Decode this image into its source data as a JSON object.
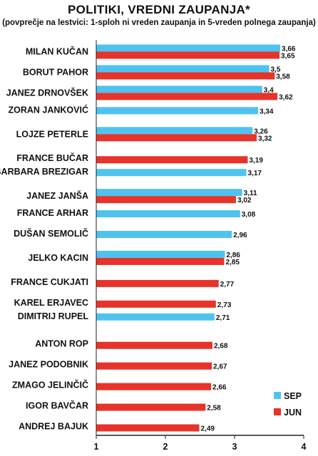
{
  "chart_data": {
    "type": "bar",
    "orientation": "horizontal",
    "title": "POLITIKI, VREDNI ZAUPANJA*",
    "subtitle": "(povprečje na lestvici: 1-sploh ni vreden zaupanja in 5-vreden polnega zaupanja)",
    "categories": [
      "MILAN KUČAN",
      "BORUT PAHOR",
      "JANEZ DRNOVŠEK",
      "ZORAN JANKOVIĆ",
      "LOJZE PETERLE",
      "FRANCE BUČAR",
      "BARBARA BREZIGAR",
      "JANEZ JANŠA",
      "FRANCE ARHAR",
      "DUŠAN SEMOLIČ",
      "JELKO KACIN",
      "FRANCE CUKJATI",
      "KAREL ERJAVEC",
      "DIMITRIJ RUPEL",
      "ANTON ROP",
      "JANEZ PODOBNIK",
      "ZMAGO JELINČIČ",
      "IGOR BAVČAR",
      "ANDREJ BAJUK"
    ],
    "series": [
      {
        "name": "SEP",
        "color": "#4fc3f0",
        "values": [
          3.66,
          3.5,
          3.4,
          3.34,
          3.26,
          null,
          3.17,
          3.11,
          3.08,
          2.96,
          2.86,
          null,
          null,
          2.71,
          null,
          null,
          null,
          null,
          null
        ],
        "labels": [
          "3,66",
          "3,5",
          "3,4",
          "3,34",
          "3,26",
          "",
          "3,17",
          "3,11",
          "3,08",
          "2,96",
          "2,86",
          "",
          "",
          "2,71",
          "",
          "",
          "",
          "",
          ""
        ]
      },
      {
        "name": "JUN",
        "color": "#e8332a",
        "values": [
          3.65,
          3.58,
          3.62,
          null,
          3.32,
          3.19,
          null,
          3.02,
          null,
          null,
          2.85,
          2.77,
          2.73,
          null,
          2.68,
          2.67,
          2.66,
          2.58,
          2.49
        ],
        "labels": [
          "3,65",
          "3,58",
          "3,62",
          "",
          "3,32",
          "3,19",
          "",
          "3,02",
          "",
          "",
          "2,85",
          "2,77",
          "2,73",
          "",
          "2,68",
          "2,67",
          "2,66",
          "2,58",
          "2,49"
        ]
      }
    ],
    "xlim": [
      1,
      4
    ],
    "xticks": [
      "1",
      "2",
      "3",
      "4"
    ],
    "legend_position": "bottom-right",
    "grid": false
  }
}
